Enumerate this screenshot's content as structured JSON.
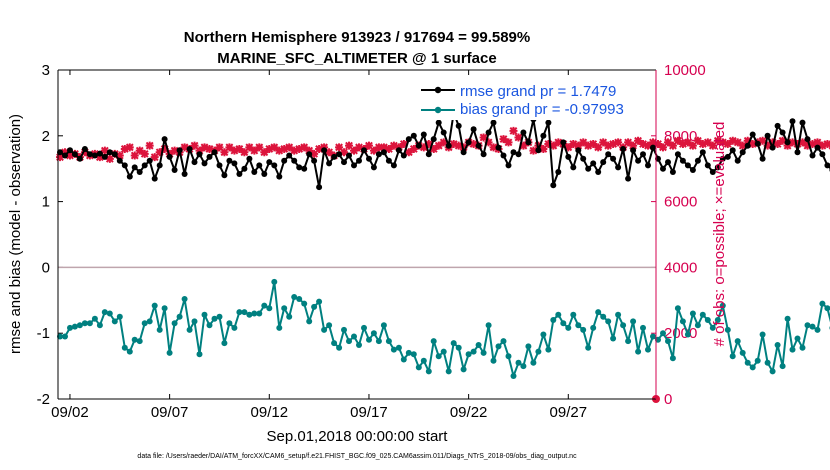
{
  "chart_data": {
    "type": "line",
    "title": "Northern Hemisphere 913923 / 917694 = 99.589%",
    "subtitle": "MARINE_SFC_ALTIMETER @ 1 surface",
    "xlabel": "Sep.01,2018 00:00:00 start",
    "ylabel_left": "rmse and bias (model - observation)",
    "ylabel_right": "# of obs: o=possible; ×=evaluated",
    "ylim_left": [
      -2,
      3
    ],
    "ylim_right": [
      0,
      10000
    ],
    "yticks_left": [
      "-2",
      "-1",
      "0",
      "1",
      "2",
      "3"
    ],
    "yticks_right": [
      "0",
      "2000",
      "4000",
      "6000",
      "8000",
      "10000"
    ],
    "xlim_days": [
      0.4,
      30.4
    ],
    "xticks": [
      {
        "day": 1,
        "label": "09/02"
      },
      {
        "day": 6,
        "label": "09/07"
      },
      {
        "day": 11,
        "label": "09/12"
      },
      {
        "day": 16,
        "label": "09/17"
      },
      {
        "day": 21,
        "label": "09/22"
      },
      {
        "day": 26,
        "label": "09/27"
      }
    ],
    "zero_line": 0,
    "interval_days": 0.25,
    "start_day": 0.5,
    "series": [
      {
        "name": "rmse grand pr = 1.7479",
        "color": "#000000",
        "axis": "left",
        "marker": "dot",
        "values": [
          1.75,
          1.7,
          1.78,
          1.72,
          1.65,
          1.8,
          1.72,
          1.7,
          1.73,
          1.68,
          1.75,
          1.72,
          1.62,
          1.55,
          1.38,
          1.52,
          1.45,
          1.55,
          1.62,
          1.35,
          1.55,
          1.95,
          1.68,
          1.48,
          1.78,
          1.42,
          1.8,
          1.6,
          1.72,
          1.58,
          1.68,
          1.75,
          1.55,
          1.4,
          1.62,
          1.58,
          1.42,
          1.5,
          1.65,
          1.45,
          1.55,
          1.42,
          1.6,
          1.55,
          1.38,
          1.62,
          1.7,
          1.62,
          1.52,
          1.5,
          1.72,
          1.62,
          1.22,
          1.78,
          1.58,
          1.68,
          1.72,
          1.6,
          1.7,
          1.55,
          1.62,
          1.78,
          1.65,
          1.52,
          1.72,
          1.75,
          1.62,
          1.55,
          1.78,
          1.7,
          1.95,
          2.0,
          1.85,
          2.02,
          1.72,
          1.95,
          2.2,
          2.05,
          1.85,
          2.35,
          2.15,
          1.75,
          1.9,
          2.1,
          1.85,
          1.72,
          2.05,
          2.2,
          1.82,
          1.7,
          1.55,
          1.75,
          1.72,
          2.05,
          1.9,
          2.25,
          1.78,
          2.0,
          2.2,
          1.25,
          1.45,
          1.9,
          1.68,
          1.52,
          1.78,
          1.65,
          1.5,
          1.58,
          1.45,
          1.6,
          1.72,
          1.65,
          1.52,
          1.8,
          1.35,
          1.78,
          1.62,
          1.72,
          1.55,
          1.82,
          1.65,
          1.5,
          1.6,
          1.45,
          1.72,
          1.62,
          1.55,
          1.48,
          1.62,
          1.75,
          1.55,
          1.45,
          1.52,
          1.65,
          1.68,
          1.78,
          1.62,
          1.75,
          1.85,
          2.02,
          1.88,
          1.65,
          2.0,
          1.82,
          2.15,
          2.05,
          1.9,
          2.22,
          1.75,
          2.2,
          1.95,
          1.7,
          1.82,
          1.72,
          1.55,
          1.48,
          1.62,
          1.75,
          1.4,
          1.22,
          1.52,
          1.45
        ]
      },
      {
        "name": "bias grand pr = -0.97993",
        "color": "#008080",
        "axis": "left",
        "marker": "dot",
        "values": [
          -1.05,
          -1.05,
          -0.92,
          -0.9,
          -0.88,
          -0.85,
          -0.85,
          -0.78,
          -0.88,
          -0.68,
          -0.7,
          -0.82,
          -0.75,
          -1.22,
          -1.28,
          -1.1,
          -1.12,
          -0.85,
          -0.82,
          -0.58,
          -0.95,
          -0.62,
          -1.3,
          -0.85,
          -0.75,
          -0.48,
          -0.95,
          -0.82,
          -1.32,
          -0.72,
          -0.88,
          -0.78,
          -0.75,
          -1.15,
          -0.85,
          -0.92,
          -0.68,
          -0.68,
          -0.72,
          -0.7,
          -0.7,
          -0.58,
          -0.62,
          -0.22,
          -0.92,
          -0.62,
          -0.75,
          -0.45,
          -0.48,
          -0.55,
          -0.82,
          -0.6,
          -0.52,
          -0.95,
          -0.88,
          -1.15,
          -1.22,
          -0.95,
          -1.12,
          -1.05,
          -1.18,
          -0.92,
          -1.1,
          -1.0,
          -1.12,
          -0.88,
          -1.12,
          -1.25,
          -1.22,
          -1.4,
          -1.3,
          -1.32,
          -1.52,
          -1.42,
          -1.58,
          -1.12,
          -1.35,
          -1.28,
          -1.58,
          -1.15,
          -1.22,
          -1.55,
          -1.32,
          -1.28,
          -1.18,
          -1.3,
          -0.88,
          -1.42,
          -1.2,
          -1.12,
          -1.35,
          -1.65,
          -1.45,
          -1.5,
          -1.2,
          -1.45,
          -1.28,
          -1.02,
          -1.25,
          -0.8,
          -0.72,
          -0.85,
          -0.92,
          -0.72,
          -0.88,
          -0.95,
          -1.22,
          -0.92,
          -0.68,
          -0.75,
          -0.82,
          -1.08,
          -0.72,
          -0.88,
          -1.12,
          -0.82,
          -1.28,
          -0.92,
          -1.25,
          -1.05,
          -1.1,
          -1.0,
          -1.12,
          -1.38,
          -0.62,
          -0.82,
          -1.02,
          -0.7,
          -0.88,
          -0.72,
          -0.8,
          -0.92,
          -0.8,
          -0.58,
          -0.95,
          -1.35,
          -1.12,
          -1.3,
          -1.45,
          -1.52,
          -1.42,
          -1.02,
          -1.45,
          -1.58,
          -1.18,
          -1.5,
          -0.78,
          -1.25,
          -1.08,
          -1.22,
          -0.88,
          -0.9,
          -0.95,
          -0.55,
          -0.62,
          -0.92,
          -0.48,
          -0.52
        ]
      },
      {
        "name": "# of obs evaluated",
        "color": "#dc143c",
        "axis": "right",
        "marker": "x",
        "values": [
          7350,
          7500,
          7400,
          7450,
          7350,
          7500,
          7400,
          7450,
          7350,
          7550,
          7300,
          7450,
          7400,
          7600,
          7650,
          7400,
          7550,
          7450,
          7700,
          7350,
          7500,
          7600,
          7450,
          7550,
          7500,
          7650,
          7600,
          7700,
          7550,
          7650,
          7600,
          7550,
          7650,
          7500,
          7650,
          7550,
          7600,
          7500,
          7650,
          7550,
          7650,
          7500,
          7600,
          7650,
          7550,
          7600,
          7650,
          7550,
          7600,
          7650,
          7550,
          7450,
          7600,
          7650,
          7500,
          7400,
          7650,
          7500,
          7700,
          7550,
          7650,
          7600,
          7700,
          7550,
          7650,
          7650,
          7600,
          7700,
          7650,
          7750,
          7500,
          7600,
          7700,
          7650,
          7750,
          7600,
          7700,
          7800,
          7650,
          7750,
          7700,
          7650,
          7800,
          7750,
          7700,
          7950,
          7800,
          7650,
          7600,
          7900,
          7800,
          8150,
          7950,
          7700,
          7800,
          7550,
          7700,
          7600,
          7750,
          7700,
          7800,
          7750,
          7650,
          7750,
          7700,
          7800,
          7700,
          7750,
          7650,
          7800,
          7700,
          7750,
          7800,
          7650,
          7800,
          7700,
          7850,
          7750,
          7700,
          7800,
          7750,
          7650,
          7800,
          7700,
          7850,
          7750,
          7800,
          7700,
          7850,
          7750,
          7800,
          7700,
          7850,
          7800,
          7750,
          7850,
          7800,
          7700,
          7850,
          7750,
          7800,
          7850,
          7700,
          7800,
          7750,
          7850,
          7700,
          7800,
          7750,
          7800,
          7700,
          7750,
          7800,
          7700,
          7750,
          7700,
          7800,
          7750
        ]
      },
      {
        "name": "# of obs possible",
        "color": "#dc143c",
        "axis": "right",
        "marker": "circle",
        "values": [
          0
        ]
      }
    ],
    "footnote": "data file: /Users/raeder/DAI/ATM_forcXX/CAM6_setup/f.e21.FHIST_BGC.f09_025.CAM6assim.011/Diags_NTrS_2018-09/obs_diag_output.nc"
  }
}
